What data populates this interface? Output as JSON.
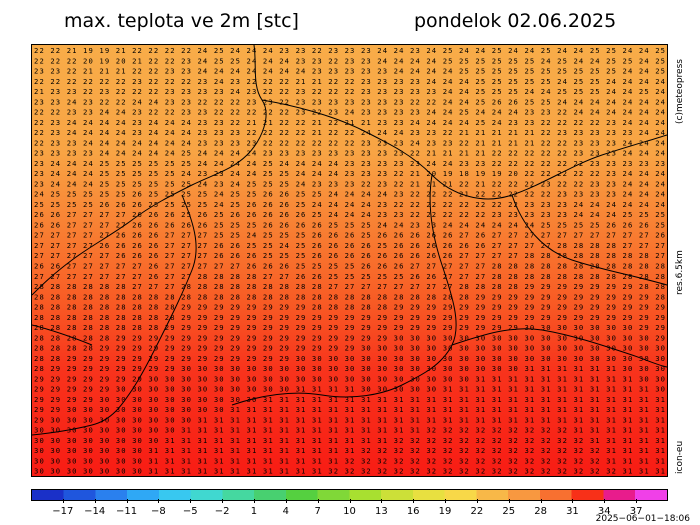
{
  "header": {
    "title": "max. teplota ve 2m [stc]",
    "date": "pondelok 02.06.2025"
  },
  "side_labels": {
    "copyright": "(c)meteopress",
    "resolution": "res.6.5km",
    "model": "icon-eu"
  },
  "run_stamp": "2025−06−01−18:06",
  "colorbar": {
    "ticks": [
      "−17",
      "−14",
      "−11",
      "−8",
      "−5",
      "−2",
      "1",
      "4",
      "7",
      "10",
      "13",
      "16",
      "19",
      "22",
      "25",
      "28",
      "31",
      "34",
      "37"
    ],
    "colors": [
      "#1a30c8",
      "#1f56dd",
      "#2a80ee",
      "#2fa8f5",
      "#38c8f0",
      "#40d8d0",
      "#45d8a0",
      "#48d070",
      "#55d040",
      "#80d838",
      "#a8e030",
      "#cce038",
      "#e8e040",
      "#f8d848",
      "#f8b848",
      "#f89840",
      "#f87030",
      "#f83018",
      "#e81c8c",
      "#f040e8"
    ]
  },
  "map": {
    "rows": [
      "22 22 21 19 19 21 22 22 22 22 24 25 24 24 24 23 23 22 23 23 23 24 24 23 24 25 24 24 25 24 24 25 24 24 25 25 24 24 25",
      "22 22 22 20 19 20 21 22 22 23 24 25 25 24 24 24 23 23 22 23 23 24 24 24 24 25 25 25 25 25 25 24 25 24 24 25 25 24 25",
      "23 23 22 21 21 21 22 22 23 23 24 24 24 24 24 24 24 23 23 23 23 23 24 24 24 24 25 25 25 25 25 25 25 25 25 25 24 24 25",
      "22 22 22 22 22 22 23 22 22 22 23 24 23 22 22 22 21 21 22 22 23 23 23 23 24 24 24 25 25 25 25 25 24 25 25 24 24 24 24",
      "21 23 23 22 23 22 22 22 23 23 23 23 24 23 22 22 23 22 22 22 23 23 23 23 23 24 24 25 25 25 24 24 25 25 25 24 24 25 24",
      "23 23 24 23 22 22 24 24 23 23 22 22 22 23 23 22 23 23 23 23 23 23 23 22 22 24 24 25 26 26 25 25 24 24 24 24 24 24 24",
      "22 22 23 23 24 24 23 22 22 23 23 22 22 22 22 22 23 22 23 24 23 23 23 23 24 24 25 24 24 24 23 23 22 24 24 24 24 24 24",
      "22 23 24 24 24 24 23 24 24 24 23 23 22 21 21 22 22 21 22 21 21 23 23 24 24 24 24 25 24 23 23 22 22 22 22 23 24 24 24",
      "22 23 24 24 24 24 23 24 24 24 23 23 23 22 22 22 22 21 22 22 24 24 24 23 23 22 21 21 21 21 21 22 23 23 23 23 23 24 24",
      "22 23 23 24 24 24 24 24 24 24 23 23 23 23 22 22 22 22 22 22 23 23 23 24 23 23 22 21 21 21 21 22 22 23 23 23 24 24 24",
      "23 23 23 23 24 24 24 24 24 25 24 24 24 24 23 23 23 23 23 23 23 23 23 22 21 21 21 21 22 22 22 22 22 23 23 23 24 24 24",
      "23 24 24 24 25 25 25 25 25 25 24 24 24 24 25 24 24 24 24 23 23 23 23 23 24 24 23 23 22 22 22 22 22 22 23 23 23 23 23",
      "23 24 24 24 25 25 25 25 25 24 23 23 24 24 25 25 24 24 24 23 23 23 22 21 20 19 18 19 19 20 22 22 22 22 22 23 24 24 24",
      "23 24 24 24 25 25 25 25 25 25 24 23 24 25 25 25 24 23 23 23 22 23 22 21 21 21 22 21 22 22 22 23 22 22 23 23 24 24 24",
      "24 25 25 25 25 25 26 25 25 25 25 24 25 25 26 26 25 25 24 24 24 24 23 22 22 22 21 22 22 22 22 22 23 23 23 23 24 24 24",
      "25 25 25 25 26 26 26 25 25 25 25 24 25 26 26 26 25 24 24 24 24 23 22 22 22 22 22 22 22 22 23 23 23 24 24 24 24 24 24",
      "26 26 27 27 27 27 26 26 26 25 26 25 26 26 26 26 26 25 24 24 24 23 23 22 22 22 22 22 23 23 23 23 23 24 24 24 25 25 25",
      "26 26 27 27 27 27 26 26 26 26 26 25 25 25 26 26 26 26 25 25 25 24 24 23 23 24 24 24 24 24 24 25 25 25 25 26 26 26 25",
      "27 27 27 27 27 26 26 26 27 27 27 25 25 24 25 25 25 26 26 26 25 26 26 26 26 26 27 26 27 27 27 27 27 27 27 27 27 27 26",
      "27 27 27 27 26 26 26 26 27 27 27 26 26 25 25 24 25 26 26 26 26 25 26 26 26 26 26 26 27 27 27 27 28 28 28 28 27 27 27",
      "27 27 27 27 27 26 26 26 27 27 27 26 26 26 25 25 25 26 26 26 26 26 26 26 26 26 27 27 27 27 28 28 28 28 28 28 28 28 27",
      "26 26 27 27 27 27 27 26 27 27 27 27 27 26 26 26 25 25 25 25 26 26 26 27 27 27 27 27 28 28 28 28 28 28 28 28 28 28 28",
      "27 27 27 27 27 27 27 26 27 27 28 28 28 28 27 27 26 26 25 25 25 25 25 26 26 27 27 27 28 28 28 28 28 28 28 28 28 28 28",
      "28 28 28 28 28 28 27 27 27 28 28 28 28 28 28 28 28 28 27 27 27 27 27 27 27 27 28 28 28 28 29 29 29 29 29 29 29 28 28",
      "28 28 28 28 28 28 28 28 28 28 28 28 28 28 28 28 28 28 28 28 28 28 28 28 28 28 28 29 29 29 29 29 29 29 29 29 29 29 28",
      "28 28 28 28 28 28 28 28 28 29 29 29 29 29 29 29 29 28 28 28 28 28 29 29 29 29 29 29 29 29 29 29 29 29 29 29 29 29 29",
      "28 28 28 28 28 28 28 28 28 29 29 29 29 29 29 29 29 29 29 29 29 29 29 29 29 29 29 29 29 29 29 29 29 29 29 29 29 29 29",
      "28 28 28 28 28 28 28 28 29 29 29 29 29 29 29 29 29 29 29 29 29 29 29 29 29 29 29 29 29 29 30 30 30 30 30 30 30 29 29",
      "28 28 28 28 28 29 29 29 29 29 29 29 29 29 29 29 29 29 29 29 29 29 30 30 30 30 30 30 30 30 30 30 30 30 30 30 30 30 29",
      "28 28 28 28 29 29 29 29 29 29 29 29 29 29 29 29 29 29 29 29 30 30 30 30 30 30 30 30 30 30 30 30 30 30 30 30 30 30 30",
      "28 28 29 29 29 29 29 29 29 29 29 29 29 29 29 29 30 30 30 30 30 30 30 30 30 30 30 30 30 30 30 30 30 30 30 30 30 30 30",
      "28 29 29 29 29 29 29 29 29 30 30 30 30 30 30 30 30 30 30 30 30 30 30 30 30 30 30 30 30 30 31 31 31 31 31 31 30 30 30",
      "29 29 29 29 29 29 29 30 30 30 30 30 30 30 30 30 30 30 30 30 30 30 30 30 30 30 30 31 31 31 31 31 31 31 31 31 31 30 30",
      "29 29 29 29 29 30 30 30 30 30 30 30 30 30 30 30 31 31 31 31 30 30 30 30 30 31 31 31 31 31 31 31 31 31 31 31 31 31 30",
      "29 29 29 29 30 30 30 30 30 30 30 30 30 30 31 31 31 31 31 31 31 31 31 31 31 31 31 31 31 31 31 31 31 31 31 31 31 31 31",
      "29 29 30 30 30 30 30 30 30 30 30 30 31 31 31 31 31 31 31 31 31 31 31 31 31 31 31 31 31 31 31 31 31 31 31 31 31 31 31",
      "29 30 30 30 30 30 30 30 30 30 31 31 31 31 31 31 31 31 31 31 31 31 31 31 31 31 31 31 31 31 31 31 31 31 31 31 31 31 31",
      "30 30 30 30 30 30 30 30 30 31 31 31 31 31 31 31 31 31 31 31 31 31 31 31 32 32 32 32 32 32 32 32 32 31 31 31 31 31 31",
      "30 30 30 30 30 30 30 30 31 31 31 31 31 31 31 31 31 31 31 31 31 31 32 32 32 32 32 32 32 32 32 32 32 32 31 31 31 31 31",
      "30 30 30 30 30 30 30 31 31 31 31 31 31 31 31 31 31 31 31 31 32 32 32 32 32 32 32 32 32 32 32 32 32 32 32 31 31 31 31",
      "30 30 30 30 30 30 30 31 31 31 31 31 31 31 31 31 31 31 31 32 32 32 32 32 32 32 32 32 32 32 32 32 32 32 32 31 31 31 31",
      "30 30 30 30 30 30 30 31 31 31 31 31 31 31 31 31 31 31 32 32 32 32 32 32 32 32 32 32 32 32 32 32 32 32 32 32 31 31 31"
    ]
  }
}
